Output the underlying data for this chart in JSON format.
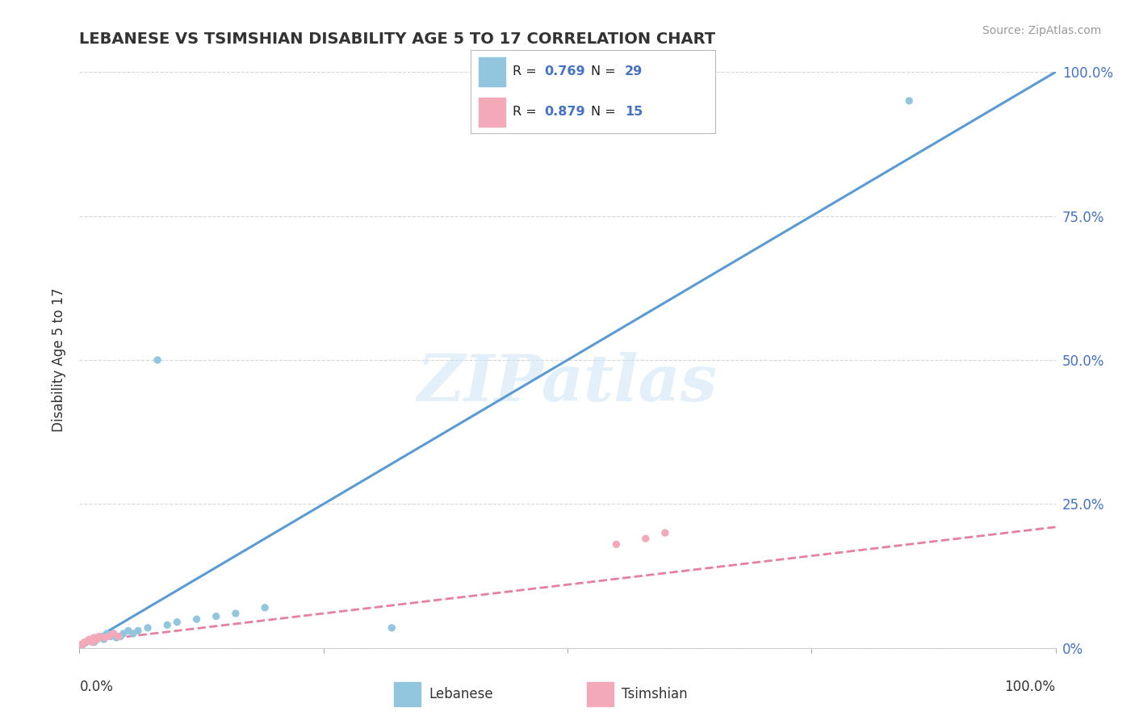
{
  "title": "LEBANESE VS TSIMSHIAN DISABILITY AGE 5 TO 17 CORRELATION CHART",
  "source": "Source: ZipAtlas.com",
  "ylabel": "Disability Age 5 to 17",
  "y_labels_right": [
    "0%",
    "25.0%",
    "50.0%",
    "75.0%",
    "100.0%"
  ],
  "legend_labels": [
    "Lebanese",
    "Tsimshian"
  ],
  "blue_color": "#92c5de",
  "pink_color": "#f4a9b8",
  "blue_line_color": "#5b9bd5",
  "pink_line_color": "#e97fa0",
  "watermark_text": "ZIPatlas",
  "blue_scatter_x": [
    0.3,
    0.5,
    0.7,
    1.0,
    1.3,
    1.5,
    1.8,
    2.0,
    2.3,
    2.5,
    2.8,
    3.2,
    3.5,
    3.8,
    4.2,
    4.5,
    5.0,
    5.5,
    6.0,
    7.0,
    8.0,
    9.0,
    10.0,
    12.0,
    14.0,
    16.0,
    19.0,
    32.0,
    85.0
  ],
  "blue_scatter_y": [
    0.5,
    0.8,
    1.0,
    1.2,
    1.5,
    1.0,
    1.5,
    1.8,
    2.0,
    1.5,
    2.5,
    2.0,
    2.5,
    1.8,
    2.0,
    2.5,
    3.0,
    2.5,
    3.0,
    3.5,
    50.0,
    4.0,
    4.5,
    5.0,
    5.5,
    6.0,
    7.0,
    3.5,
    95.0
  ],
  "pink_scatter_x": [
    0.3,
    0.5,
    0.8,
    1.0,
    1.3,
    1.5,
    1.8,
    2.0,
    2.5,
    3.0,
    3.5,
    4.0,
    55.0,
    58.0,
    60.0
  ],
  "pink_scatter_y": [
    0.5,
    1.0,
    1.2,
    1.5,
    1.0,
    1.8,
    1.5,
    2.0,
    1.8,
    2.0,
    2.5,
    2.0,
    18.0,
    19.0,
    20.0
  ],
  "blue_line_x": [
    0,
    100
  ],
  "blue_line_y": [
    0,
    100
  ],
  "pink_line_x": [
    0,
    100
  ],
  "pink_line_y": [
    1.0,
    21.0
  ],
  "xlim": [
    0,
    100
  ],
  "ylim": [
    0,
    100
  ],
  "grid_color": "#cccccc",
  "background_color": "#ffffff",
  "title_color": "#333333",
  "source_color": "#999999",
  "axis_label_color": "#4472c4",
  "text_color": "#333333"
}
